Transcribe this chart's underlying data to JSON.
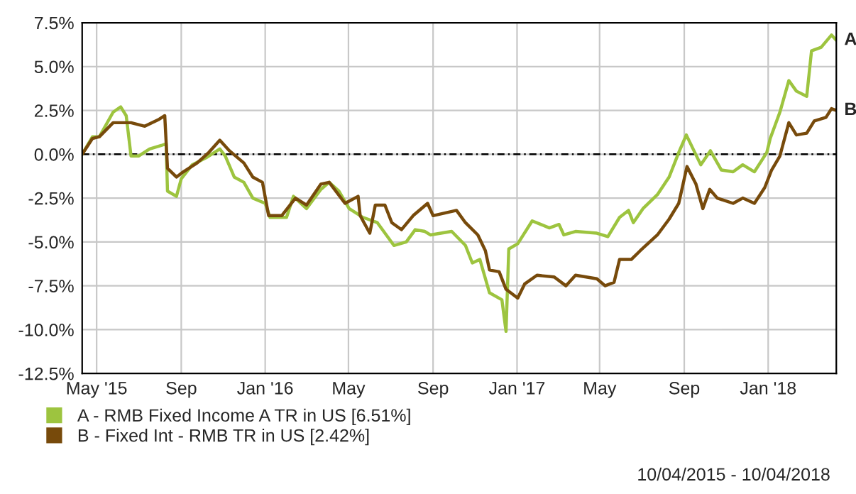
{
  "chart_data": {
    "type": "line",
    "x": [
      "2015-04-10",
      "2015-04-25",
      "2015-05-05",
      "2015-05-25",
      "2015-06-05",
      "2015-06-13",
      "2015-06-20",
      "2015-07-01",
      "2015-07-17",
      "2015-08-03",
      "2015-08-10",
      "2015-08-12",
      "2015-08-25",
      "2015-09-01",
      "2015-09-17",
      "2015-10-07",
      "2015-10-27",
      "2015-11-04",
      "2015-11-17",
      "2015-12-01",
      "2015-12-14",
      "2016-01-01",
      "2016-01-08",
      "2016-02-01",
      "2016-02-11",
      "2016-03-01",
      "2016-03-22",
      "2016-04-03",
      "2016-04-17",
      "2016-05-02",
      "2016-05-22",
      "2016-06-12",
      "2016-07-06",
      "2016-07-24",
      "2016-08-06",
      "2016-08-20",
      "2016-08-28",
      "2016-09-28",
      "2016-10-18",
      "2016-10-28",
      "2016-11-08",
      "2016-11-22",
      "2016-12-10",
      "2016-12-16",
      "2016-12-20",
      "2017-01-02",
      "2017-01-23",
      "2017-02-17",
      "2017-03-03",
      "2017-03-10",
      "2017-03-27",
      "2017-04-27",
      "2017-05-13",
      "2017-05-30",
      "2017-06-12",
      "2017-06-19",
      "2017-07-03",
      "2017-07-24",
      "2017-08-10",
      "2017-08-24",
      "2017-09-04",
      "2017-09-25",
      "2017-10-09",
      "2017-10-25",
      "2017-11-11",
      "2017-11-25",
      "2017-12-12",
      "2017-12-30",
      "2018-01-04",
      "2018-01-18",
      "2018-01-31",
      "2018-02-11",
      "2018-02-26",
      "2018-03-05",
      "2018-03-19",
      "2018-04-03",
      "2018-04-10"
    ],
    "series": [
      {
        "name": "A - RMB Fixed Income A TR in US [6.51%]",
        "color": "#9dc43f",
        "values": [
          0,
          1.0,
          1.0,
          2.4,
          2.7,
          2.2,
          -0.1,
          -0.1,
          0.3,
          0.5,
          0.6,
          -2.1,
          -2.4,
          -1.4,
          -0.6,
          -0.2,
          0.3,
          -0.1,
          -1.3,
          -1.6,
          -2.5,
          -2.8,
          -3.6,
          -3.6,
          -2.4,
          -3.1,
          -2.0,
          -1.6,
          -2.1,
          -3.1,
          -3.6,
          -3.9,
          -5.2,
          -5.0,
          -4.3,
          -4.4,
          -4.6,
          -4.4,
          -5.2,
          -6.2,
          -6.0,
          -7.9,
          -8.3,
          -10.1,
          -5.4,
          -5.1,
          -3.8,
          -4.2,
          -4.0,
          -4.6,
          -4.4,
          -4.5,
          -4.7,
          -3.6,
          -3.2,
          -3.9,
          -3.1,
          -2.3,
          -1.3,
          0.1,
          1.1,
          -0.6,
          0.2,
          -0.9,
          -1.0,
          -0.6,
          -1.0,
          0.1,
          0.9,
          2.4,
          4.2,
          3.6,
          3.3,
          5.9,
          6.1,
          6.8,
          6.5
        ]
      },
      {
        "name": "B - Fixed Int - RMB TR in US [2.42%]",
        "color": "#774a0b",
        "x": [
          "2015-04-10",
          "2015-04-25",
          "2015-05-05",
          "2015-05-25",
          "2015-06-20",
          "2015-07-10",
          "2015-07-31",
          "2015-08-08",
          "2015-08-12",
          "2015-08-25",
          "2015-09-04",
          "2015-09-24",
          "2015-10-11",
          "2015-10-27",
          "2015-11-10",
          "2015-12-01",
          "2015-12-14",
          "2015-12-28",
          "2016-01-06",
          "2016-01-25",
          "2016-02-14",
          "2016-03-01",
          "2016-03-22",
          "2016-04-03",
          "2016-04-26",
          "2016-05-15",
          "2016-05-18",
          "2016-06-01",
          "2016-06-09",
          "2016-06-23",
          "2016-07-03",
          "2016-07-17",
          "2016-08-03",
          "2016-08-24",
          "2016-09-01",
          "2016-10-05",
          "2016-10-18",
          "2016-11-05",
          "2016-11-16",
          "2016-11-22",
          "2016-12-06",
          "2016-12-16",
          "2017-01-02",
          "2017-01-12",
          "2017-01-30",
          "2017-02-24",
          "2017-03-13",
          "2017-03-27",
          "2017-04-27",
          "2017-05-09",
          "2017-05-22",
          "2017-05-30",
          "2017-06-16",
          "2017-06-29",
          "2017-07-24",
          "2017-08-10",
          "2017-08-24",
          "2017-09-05",
          "2017-09-18",
          "2017-09-28",
          "2017-10-08",
          "2017-10-19",
          "2017-11-11",
          "2017-11-25",
          "2017-12-12",
          "2017-12-27",
          "2018-01-06",
          "2018-01-18",
          "2018-01-31",
          "2018-02-11",
          "2018-02-26",
          "2018-03-09",
          "2018-03-26",
          "2018-04-03",
          "2018-04-10"
        ],
        "values": [
          0,
          0.9,
          1.0,
          1.8,
          1.8,
          1.6,
          2.0,
          2.2,
          -0.8,
          -1.3,
          -1.0,
          -0.5,
          0.1,
          0.8,
          0.2,
          -0.5,
          -1.3,
          -1.6,
          -3.5,
          -3.5,
          -2.5,
          -2.9,
          -1.7,
          -1.6,
          -2.8,
          -2.4,
          -3.5,
          -4.5,
          -2.9,
          -2.9,
          -3.9,
          -4.3,
          -3.5,
          -2.8,
          -3.5,
          -3.2,
          -3.9,
          -4.6,
          -5.5,
          -6.6,
          -6.7,
          -7.7,
          -8.2,
          -7.4,
          -6.9,
          -7.0,
          -7.5,
          -6.9,
          -7.1,
          -7.5,
          -7.3,
          -6.0,
          -6.0,
          -5.5,
          -4.6,
          -3.7,
          -2.8,
          -0.7,
          -1.7,
          -3.1,
          -2.0,
          -2.5,
          -2.8,
          -2.5,
          -2.8,
          -1.9,
          -0.9,
          -0.1,
          1.8,
          1.1,
          1.2,
          1.9,
          2.1,
          2.6,
          2.5
        ]
      }
    ],
    "xlim": [
      "2015-04-10",
      "2018-04-10"
    ],
    "xticks": [
      {
        "value": "2015-05-01",
        "label": "May '15"
      },
      {
        "value": "2015-09-01",
        "label": "Sep"
      },
      {
        "value": "2016-01-01",
        "label": "Jan '16"
      },
      {
        "value": "2016-05-01",
        "label": "May"
      },
      {
        "value": "2016-09-01",
        "label": "Sep"
      },
      {
        "value": "2017-01-01",
        "label": "Jan '17"
      },
      {
        "value": "2017-05-01",
        "label": "May"
      },
      {
        "value": "2017-09-01",
        "label": "Sep"
      },
      {
        "value": "2018-01-01",
        "label": "Jan '18"
      }
    ],
    "ylim": [
      -12.5,
      7.5
    ],
    "yticks": [
      {
        "value": -12.5,
        "label": "-12.5%"
      },
      {
        "value": -10,
        "label": "-10.0%"
      },
      {
        "value": -7.5,
        "label": "-7.5%"
      },
      {
        "value": -5,
        "label": "-5.0%"
      },
      {
        "value": -2.5,
        "label": "-2.5%"
      },
      {
        "value": 0,
        "label": "0.0%"
      },
      {
        "value": 2.5,
        "label": "2.5%"
      },
      {
        "value": 5,
        "label": "5.0%"
      },
      {
        "value": 7.5,
        "label": "7.5%"
      }
    ],
    "ref_lines": [
      {
        "axis": "y",
        "value": 0,
        "color": "#000000",
        "line_style": "dashdot"
      }
    ],
    "grid": true,
    "legend": "bottom",
    "line_style": "solid",
    "marker": "none",
    "annotations": [
      {
        "text": "A",
        "x": "2018-04-10",
        "y": 6.5
      },
      {
        "text": "B",
        "x": "2018-04-10",
        "y": 2.5
      },
      "10/04/2015 - 10/04/2018"
    ]
  }
}
